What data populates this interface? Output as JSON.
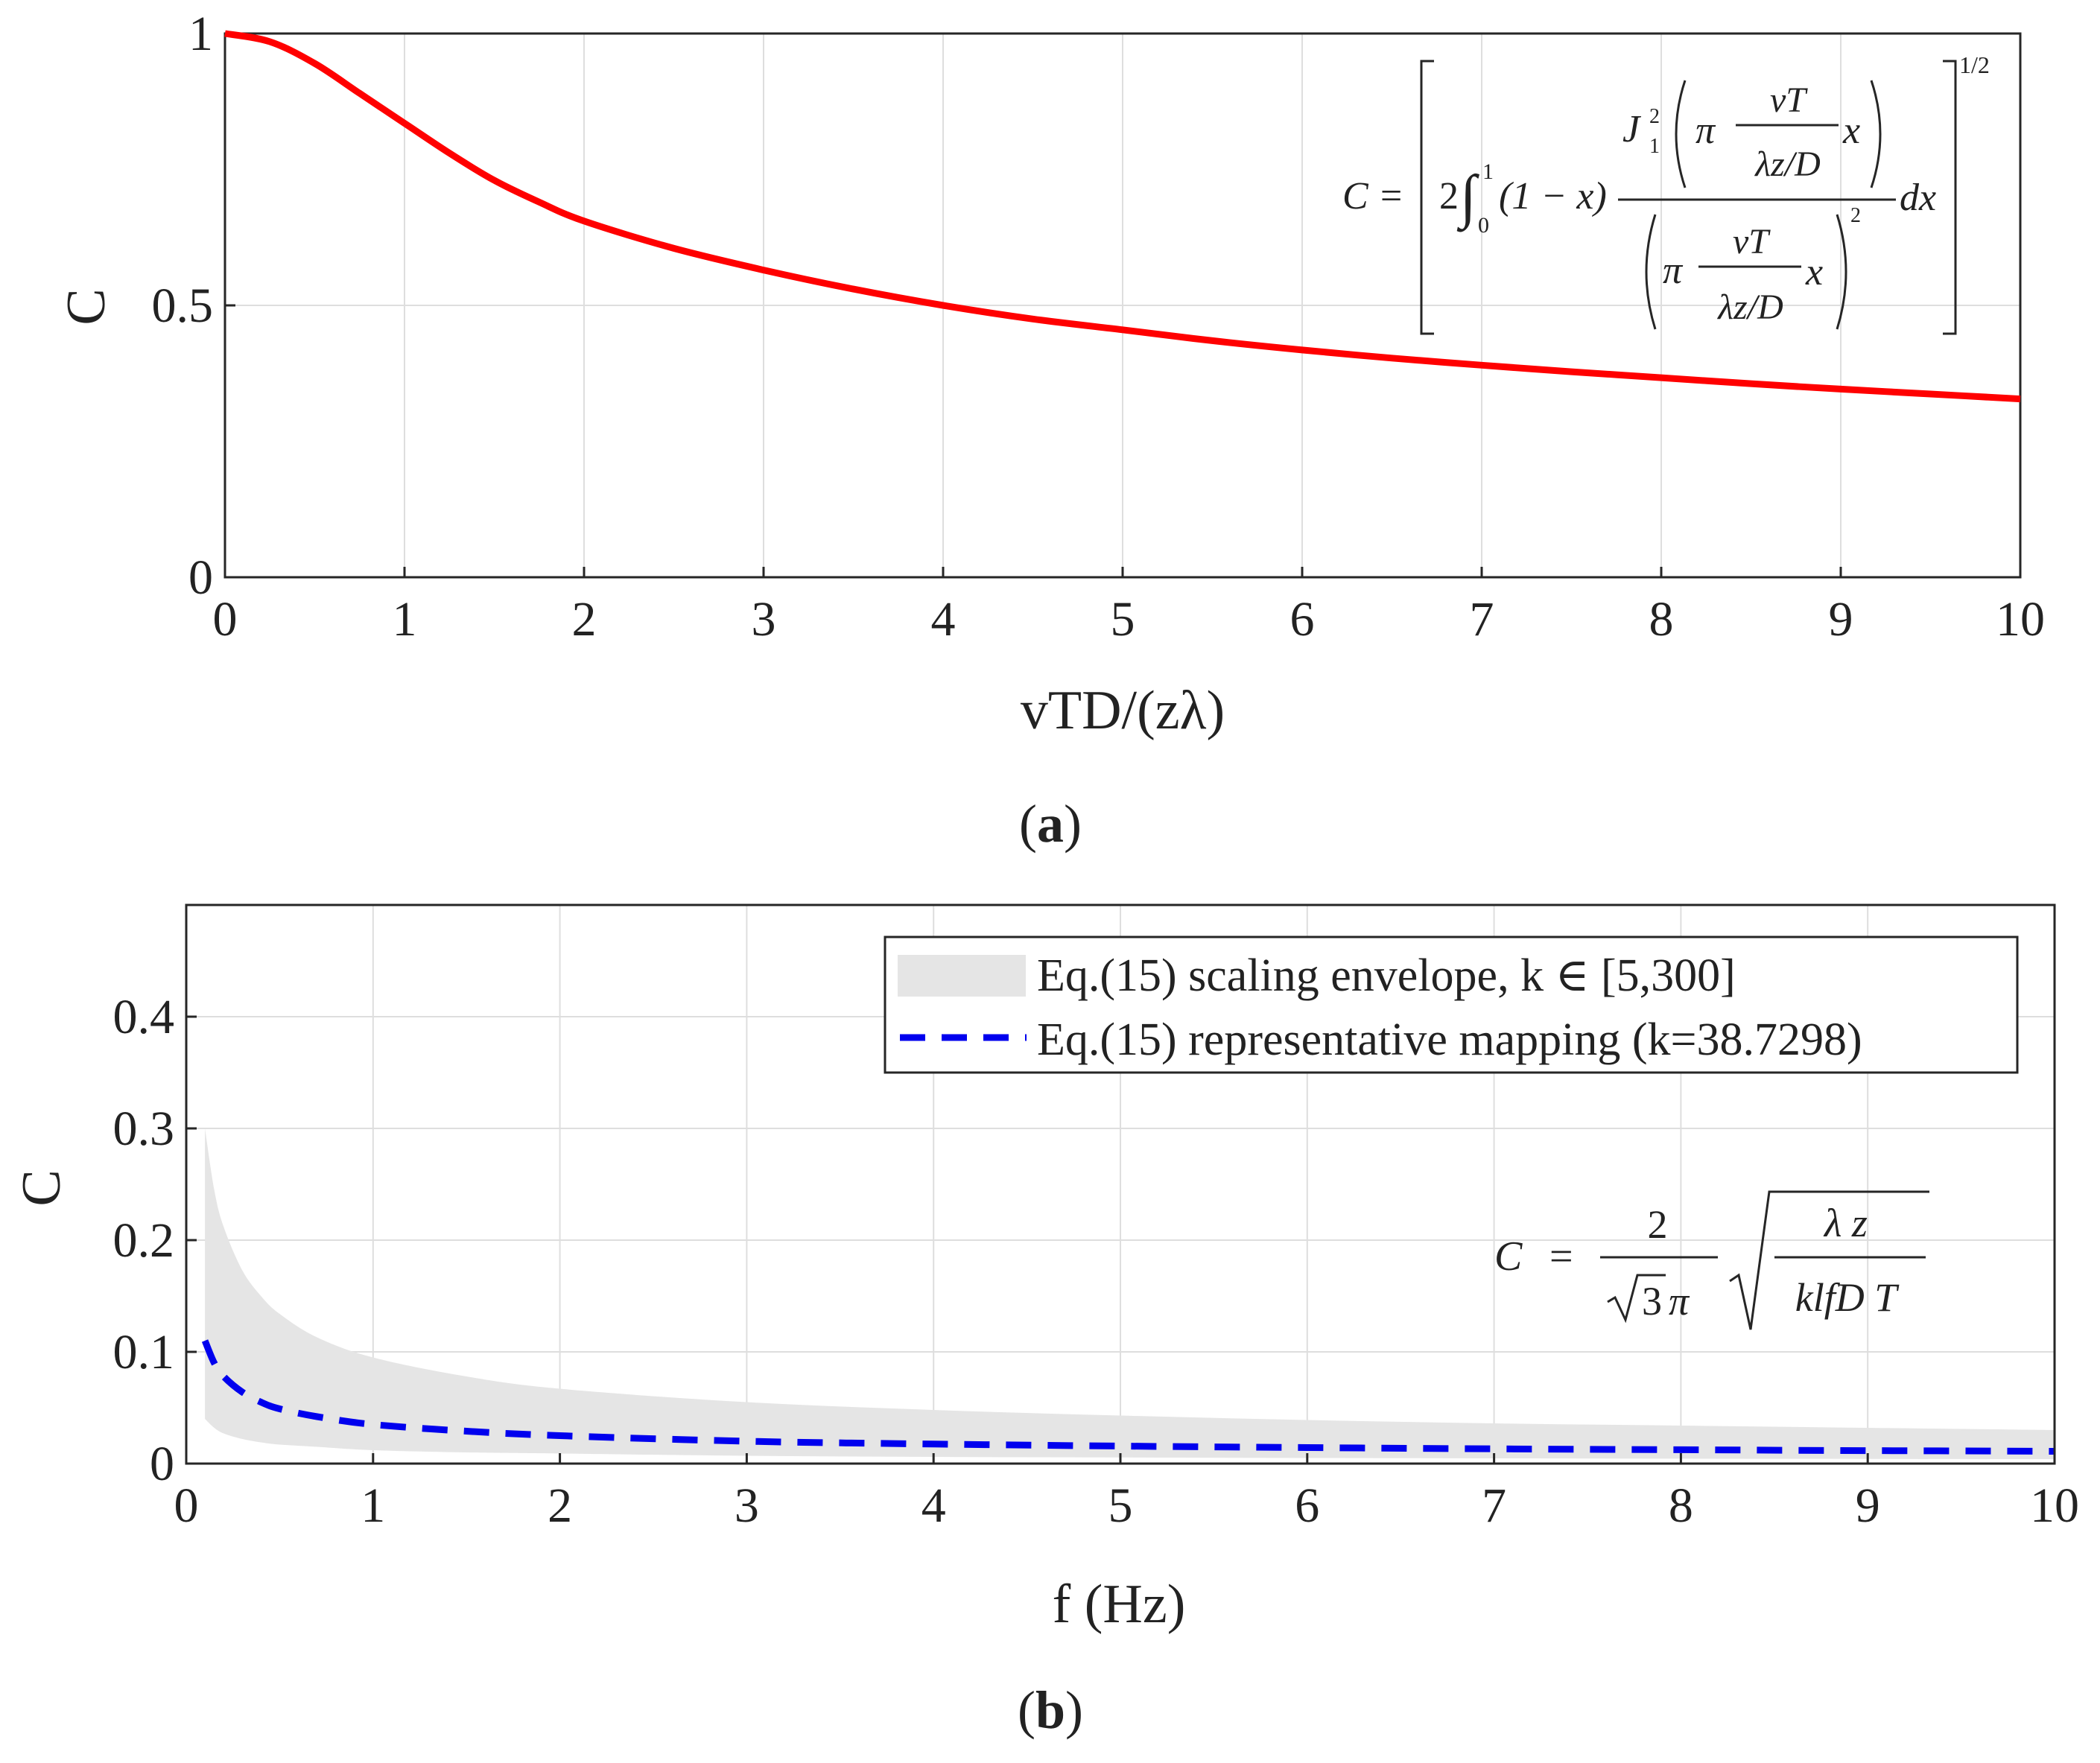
{
  "chart_data": [
    {
      "panel_label": "(a)",
      "panel_letter": "a",
      "type": "line",
      "xlabel": "vTD/(zλ)",
      "ylabel": "C",
      "xlim": [
        0,
        10
      ],
      "ylim": [
        0,
        1
      ],
      "grid": true,
      "x_ticks": [
        "0",
        "1",
        "2",
        "3",
        "4",
        "5",
        "6",
        "7",
        "8",
        "9",
        "10"
      ],
      "y_ticks": [
        "0",
        "0.5",
        "1"
      ],
      "series": [
        {
          "name": "C",
          "color": "#ff0000",
          "style": "solid",
          "x": [
            0,
            0.25,
            0.5,
            0.75,
            1,
            1.25,
            1.5,
            1.75,
            2,
            2.5,
            3,
            3.5,
            4,
            4.5,
            5,
            5.5,
            6,
            6.5,
            7,
            7.5,
            8,
            8.5,
            9,
            9.5,
            10
          ],
          "y": [
            1.0,
            0.985,
            0.945,
            0.89,
            0.835,
            0.78,
            0.73,
            0.69,
            0.655,
            0.605,
            0.565,
            0.53,
            0.5,
            0.475,
            0.455,
            0.435,
            0.418,
            0.403,
            0.39,
            0.378,
            0.367,
            0.356,
            0.346,
            0.337,
            0.328
          ]
        }
      ],
      "annotation": {
        "lhs": "C =",
        "coef": "2",
        "int_upper": "1",
        "int_lower": "0",
        "factor": "(1 − x)",
        "bessel": "J",
        "bessel_sub": "1",
        "bessel_sup": "2",
        "pi": "π",
        "frac_num": "vT",
        "frac_den": "λz/D",
        "var": "x",
        "den_power": "2",
        "dx": "dx",
        "outer_power": "1/2"
      }
    },
    {
      "panel_label": "(b)",
      "panel_letter": "b",
      "type": "line",
      "xlabel": "f (Hz)",
      "ylabel": "C",
      "xlim": [
        0,
        10
      ],
      "ylim": [
        0,
        0.5
      ],
      "grid": true,
      "x_ticks": [
        "0",
        "1",
        "2",
        "3",
        "4",
        "5",
        "6",
        "7",
        "8",
        "9",
        "10"
      ],
      "y_ticks": [
        "0",
        "0.1",
        "0.2",
        "0.3",
        "0.4"
      ],
      "envelope": {
        "name": "Eq.(15) scaling envelope, k ∈ [5,300]",
        "color": "#e5e5e5",
        "x": [
          0.1,
          0.15,
          0.2,
          0.3,
          0.4,
          0.5,
          0.7,
          1,
          1.5,
          2,
          3,
          4,
          5,
          6,
          7,
          8,
          9,
          10
        ],
        "upper": [
          0.3,
          0.245,
          0.212,
          0.173,
          0.15,
          0.134,
          0.113,
          0.095,
          0.078,
          0.067,
          0.055,
          0.048,
          0.043,
          0.039,
          0.036,
          0.034,
          0.032,
          0.03
        ],
        "lower": [
          0.04,
          0.032,
          0.027,
          0.022,
          0.019,
          0.017,
          0.015,
          0.012,
          0.01,
          0.009,
          0.007,
          0.006,
          0.0055,
          0.005,
          0.0047,
          0.0044,
          0.0041,
          0.0039
        ]
      },
      "series": [
        {
          "name": "Eq.(15) representative mapping (k=38.7298)",
          "color": "#0000ee",
          "style": "dashed",
          "x": [
            0.1,
            0.15,
            0.2,
            0.3,
            0.4,
            0.5,
            0.7,
            1,
            1.5,
            2,
            3,
            4,
            5,
            6,
            7,
            8,
            9,
            10
          ],
          "y": [
            0.11,
            0.09,
            0.078,
            0.064,
            0.055,
            0.049,
            0.042,
            0.035,
            0.029,
            0.025,
            0.02,
            0.0175,
            0.0157,
            0.0143,
            0.0132,
            0.0124,
            0.0116,
            0.011
          ]
        }
      ],
      "legend_position": "top-right",
      "annotation": {
        "lhs": "C",
        "eq": "=",
        "num": "2",
        "den_root": "3",
        "den_pi": "π",
        "root_num": "λ z",
        "root_den": "klfD T"
      }
    }
  ]
}
